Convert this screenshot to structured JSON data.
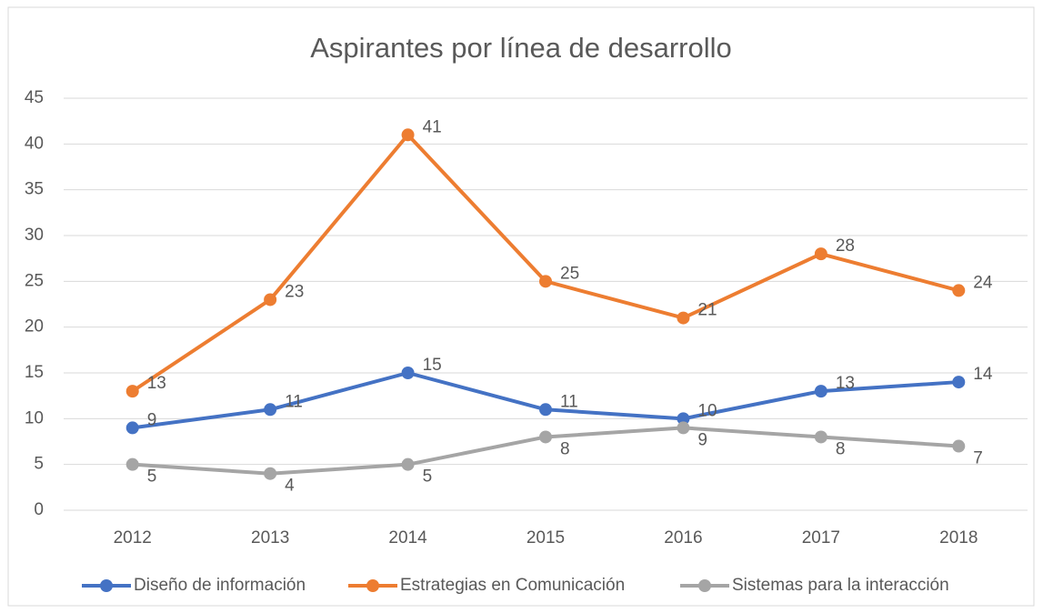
{
  "chart_data": {
    "type": "line",
    "title": "Aspirantes por línea de desarrollo",
    "categories": [
      "2012",
      "2013",
      "2014",
      "2015",
      "2016",
      "2017",
      "2018"
    ],
    "series": [
      {
        "name": "Diseño de información",
        "color": "#4472c4",
        "values": [
          9,
          11,
          15,
          11,
          10,
          13,
          14
        ]
      },
      {
        "name": "Estrategias en Comunicación",
        "color": "#ed7d31",
        "values": [
          13,
          23,
          41,
          25,
          21,
          28,
          24
        ]
      },
      {
        "name": "Sistemas para la interacción",
        "color": "#a5a5a5",
        "values": [
          5,
          4,
          5,
          8,
          9,
          8,
          7
        ]
      }
    ],
    "ylim": [
      0,
      45
    ],
    "yticks": [
      0,
      5,
      10,
      15,
      20,
      25,
      30,
      35,
      40,
      45
    ],
    "grid": true,
    "legend": "bottom"
  }
}
